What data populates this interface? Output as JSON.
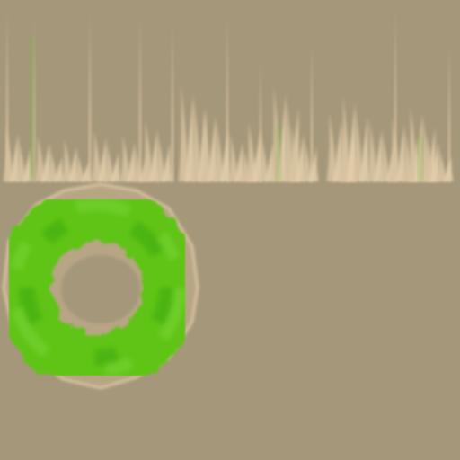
{
  "texture_atlas": {
    "background_color": "#a5977a",
    "grass_strip": {
      "blade_color": "#d8c3a0",
      "blade_highlight": "#e2ceaa",
      "accent_green": "#7fb34a"
    },
    "moss_ring": {
      "outline_color": "#d8c3a0",
      "fill_color": "#5fc418",
      "dark_green": "#3ea80a",
      "light_green": "#7ed63a",
      "hole_color": "#a5977a"
    }
  }
}
